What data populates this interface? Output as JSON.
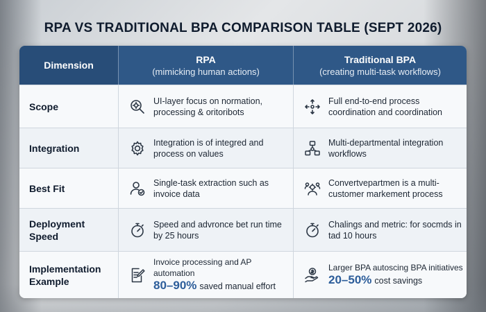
{
  "title": "RPA VS TRADITIONAL BPA COMPARISON TABLE (SEPT 2026)",
  "header": {
    "dimension": "Dimension",
    "rpa_title": "RPA",
    "rpa_sub": "(mimicking human actions)",
    "bpa_title": "Traditional BPA",
    "bpa_sub": "(creating multi-task workflows)"
  },
  "rows": [
    {
      "dimension": "Scope",
      "rpa_icon": "magnifier-gear-icon",
      "rpa": "UI-layer focus on normation, processing & oritoribots",
      "bpa_icon": "arrows-expand-icon",
      "bpa": "Full end-to-end process coordination and coordination"
    },
    {
      "dimension": "Integration",
      "rpa_icon": "gear-icon",
      "rpa": "Integration is of integred and process on values",
      "bpa_icon": "network-nodes-icon",
      "bpa": "Multi-departmental integration workflows"
    },
    {
      "dimension": "Best Fit",
      "rpa_icon": "user-check-icon",
      "rpa": "Single-task extraction such as invoice data",
      "bpa_icon": "people-gear-icon",
      "bpa": "Convertvepartmen is a multi-customer markement process"
    },
    {
      "dimension_line1": "Deployment",
      "dimension_line2": "Speed",
      "rpa_icon": "stopwatch-icon",
      "rpa": "Speed and advronce bet run time by 25 hours",
      "bpa_icon": "stopwatch-icon",
      "bpa": "Chalings and metric: for socmds in tad 10 hours"
    },
    {
      "dimension_line1": "Implementation",
      "dimension_line2": "Example",
      "rpa_icon": "document-pen-icon",
      "rpa_line1": "Invoice processing and AP automation",
      "rpa_big": "80–90%",
      "rpa_rest": "saved manual effort",
      "bpa_icon": "hand-coin-icon",
      "bpa_line1": "Larger BPA autoscing BPA initiatives",
      "bpa_big": "20–50%",
      "bpa_rest": "cost savings"
    }
  ]
}
